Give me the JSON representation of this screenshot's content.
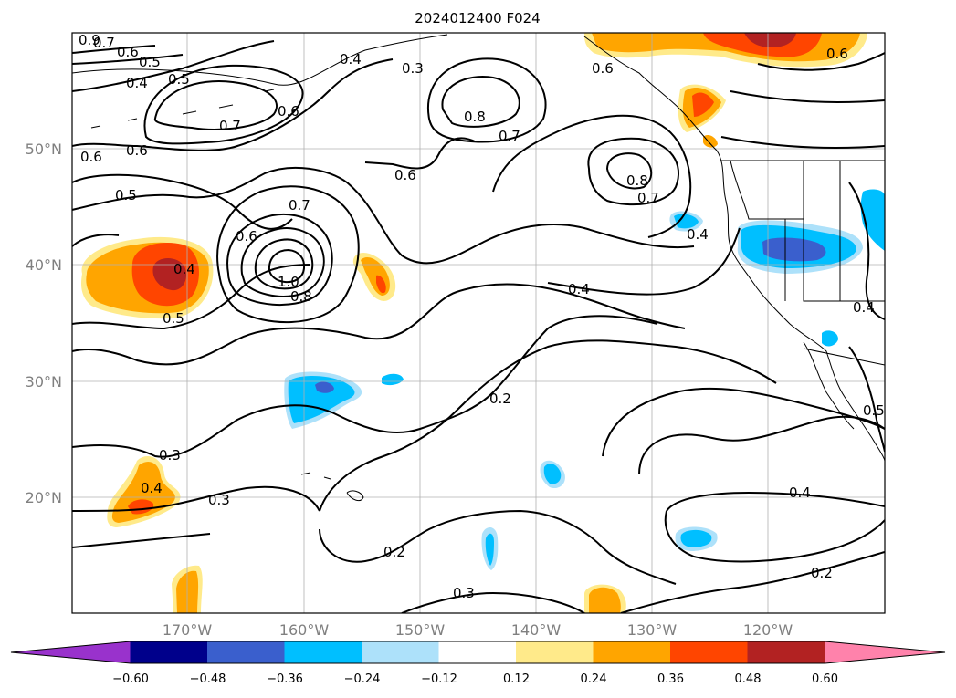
{
  "title": "2024012400 F024",
  "lat_ticks": [
    "50°N",
    "40°N",
    "30°N",
    "20°N"
  ],
  "lon_ticks": [
    "170°W",
    "160°W",
    "150°W",
    "140°W",
    "130°W",
    "120°W"
  ],
  "colorbar": {
    "ticks": [
      "−0.60",
      "−0.48",
      "−0.36",
      "−0.24",
      "−0.12",
      "0.12",
      "0.24",
      "0.36",
      "0.48",
      "0.60"
    ],
    "colors": [
      "#9932CC",
      "#00008B",
      "#3A5FCD",
      "#00BFFF",
      "#ADE1FA",
      "#FFFFFF",
      "#FFEA8A",
      "#FFA500",
      "#FF4500",
      "#B22222",
      "#FF82AB"
    ]
  },
  "contour_labels": [
    {
      "text": "0.9"
    },
    {
      "text": "0.7"
    },
    {
      "text": "0.6"
    },
    {
      "text": "0.5"
    },
    {
      "text": "0.4"
    },
    {
      "text": "0.5"
    },
    {
      "text": "0.7"
    },
    {
      "text": "0.6"
    },
    {
      "text": "0.4"
    },
    {
      "text": "0.3"
    },
    {
      "text": "0.8"
    },
    {
      "text": "0.7"
    },
    {
      "text": "0.6"
    },
    {
      "text": "0.6"
    },
    {
      "text": "0.6"
    },
    {
      "text": "0.5"
    },
    {
      "text": "0.6"
    },
    {
      "text": "0.7"
    },
    {
      "text": "0.6"
    },
    {
      "text": "0.8"
    },
    {
      "text": "0.7"
    },
    {
      "text": "0.4"
    },
    {
      "text": "0.4"
    },
    {
      "text": "0.5"
    },
    {
      "text": "1.0"
    },
    {
      "text": "0.8"
    },
    {
      "text": "0.4"
    },
    {
      "text": "0.4"
    },
    {
      "text": "0.2"
    },
    {
      "text": "0.5"
    },
    {
      "text": "0.3"
    },
    {
      "text": "0.4"
    },
    {
      "text": "0.3"
    },
    {
      "text": "0.2"
    },
    {
      "text": "0.4"
    },
    {
      "text": "0.3"
    },
    {
      "text": "0.2"
    },
    {
      "text": "0.6"
    }
  ]
}
